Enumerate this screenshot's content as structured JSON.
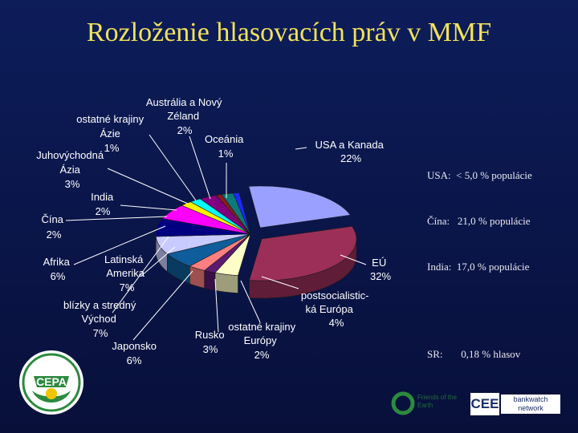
{
  "slide": {
    "title": "Rozloženie hlasovacích práv v MMF"
  },
  "chart_data": {
    "type": "pie",
    "title": "",
    "style": "3d-exploded",
    "slices": [
      {
        "name": "USA a Kanada",
        "value": 22,
        "label": "22%",
        "color": "#9aa0ff"
      },
      {
        "name": "EÚ",
        "value": 32,
        "label": "32%",
        "color": "#9b2f58"
      },
      {
        "name": "postsocialistická Európa",
        "value": 4,
        "label": "4%",
        "color": "#fdfdc8"
      },
      {
        "name": "ostatné krajiny Európy",
        "value": 2,
        "label": "2%",
        "color": "#5c1a70"
      },
      {
        "name": "Rusko",
        "value": 3,
        "label": "3%",
        "color": "#ff7f7f"
      },
      {
        "name": "Japonsko",
        "value": 6,
        "label": "6%",
        "color": "#0f5d9a"
      },
      {
        "name": "blízky a stredný Východ",
        "value": 7,
        "label": "7%",
        "color": "#c8cbff"
      },
      {
        "name": "Latinská Amerika",
        "value": 7,
        "label": "7%",
        "color": "#000080"
      },
      {
        "name": "Afrika",
        "value": 6,
        "label": "6%",
        "color": "#ff00ff"
      },
      {
        "name": "Čína",
        "value": 2,
        "label": "2%",
        "color": "#fff200"
      },
      {
        "name": "India",
        "value": 2,
        "label": "2%",
        "color": "#00ffff"
      },
      {
        "name": "Juhovýchodná Ázia",
        "value": 3,
        "label": "3%",
        "color": "#800080"
      },
      {
        "name": "ostatné krajiny Ázie",
        "value": 1,
        "label": "1%",
        "color": "#8b1a1a"
      },
      {
        "name": "Austrália a Nový Zéland",
        "value": 2,
        "label": "2%",
        "color": "#0a7a7a"
      },
      {
        "name": "Oceánia",
        "value": 1,
        "label": "1%",
        "color": "#1a2aff"
      }
    ]
  },
  "labels": {
    "usa_1": "USA a Kanada",
    "usa_2": "22%",
    "eu_1": "EÚ",
    "eu_2": "32%",
    "post_1": "postsocialistic-",
    "post_2": "ká Európa",
    "post_3": "4%",
    "oke_1": "ostatné krajiny",
    "oke_2": "Európy",
    "oke_3": "2%",
    "rus_1": "Rusko",
    "rus_2": "3%",
    "jap_1": "Japonsko",
    "jap_2": "6%",
    "bsv_1": "blízky a stredný",
    "bsv_2": "Východ",
    "bsv_3": "7%",
    "lat_1": "Latinská",
    "lat_2": "Amerika",
    "lat_3": "7%",
    "afr_1": "Afrika",
    "afr_2": "6%",
    "cin_1": "Čína",
    "cin_2": "2%",
    "ind_1": "India",
    "ind_2": "2%",
    "jva_1": "Juhovýchodná",
    "jva_2": "Ázia",
    "jva_3": "3%",
    "oka_1": "ostatné krajiny",
    "oka_2": "Ázie",
    "oka_3": "1%",
    "anz_1": "Austrália a Nový",
    "anz_2": "Zéland",
    "anz_3": "2%",
    "oce_1": "Oceánia",
    "oce_2": "1%"
  },
  "stats": {
    "usa": "USA:  < 5,0 % populácie",
    "china": "Čína:   21,0 % populácie",
    "india": "India:  17,0 % populácie",
    "sr": "SR:       0,18 % hlasov"
  },
  "logos": {
    "cepa": "CEPA",
    "friends": "Friends of the Earth",
    "cee": "CEE",
    "bankwatch_1": "bankwatch",
    "bankwatch_2": "network"
  },
  "colors": {
    "title": "#f2e25a",
    "background": "#0d1d5a"
  }
}
